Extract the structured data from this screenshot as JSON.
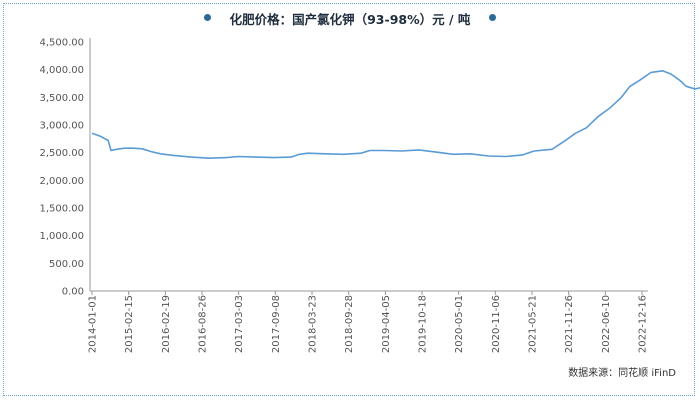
{
  "chart_data": {
    "type": "line",
    "title": "化肥价格：国产氯化钾（93-98%）元 / 吨",
    "xlabel": "",
    "ylabel": "",
    "ylim": [
      0,
      4500
    ],
    "y_ticks": [
      "4,500.00",
      "4,000.00",
      "3,500.00",
      "3,000.00",
      "2,500.00",
      "2,000.00",
      "1,500.00",
      "1,000.00",
      "500.00",
      "0.00"
    ],
    "x_ticks": [
      "2014-01-01",
      "2015-02-15",
      "2016-02-19",
      "2016-08-26",
      "2017-03-03",
      "2017-09-08",
      "2018-03-23",
      "2018-09-28",
      "2019-04-05",
      "2019-10-18",
      "2020-05-01",
      "2020-11-06",
      "2021-05-21",
      "2021-11-26",
      "2022-06-10",
      "2022-12-16"
    ],
    "grid": false,
    "series": [
      {
        "color": "#5b9bd5",
        "points": [
          [
            "2014-01-01",
            2850
          ],
          [
            "2014-04-01",
            2800
          ],
          [
            "2014-07-01",
            2720
          ],
          [
            "2014-08-01",
            2540
          ],
          [
            "2014-10-01",
            2560
          ],
          [
            "2015-01-01",
            2580
          ],
          [
            "2015-04-01",
            2580
          ],
          [
            "2015-07-01",
            2570
          ],
          [
            "2015-10-01",
            2520
          ],
          [
            "2016-01-01",
            2480
          ],
          [
            "2016-04-01",
            2450
          ],
          [
            "2016-07-01",
            2420
          ],
          [
            "2016-10-01",
            2400
          ],
          [
            "2017-01-01",
            2410
          ],
          [
            "2017-03-01",
            2430
          ],
          [
            "2017-06-01",
            2420
          ],
          [
            "2017-09-01",
            2410
          ],
          [
            "2017-12-01",
            2420
          ],
          [
            "2018-01-15",
            2470
          ],
          [
            "2018-03-01",
            2490
          ],
          [
            "2018-06-01",
            2480
          ],
          [
            "2018-09-01",
            2470
          ],
          [
            "2018-12-01",
            2490
          ],
          [
            "2019-01-15",
            2540
          ],
          [
            "2019-04-01",
            2540
          ],
          [
            "2019-07-01",
            2530
          ],
          [
            "2019-10-01",
            2550
          ],
          [
            "2020-01-01",
            2510
          ],
          [
            "2020-04-01",
            2470
          ],
          [
            "2020-07-01",
            2480
          ],
          [
            "2020-10-01",
            2440
          ],
          [
            "2021-01-01",
            2430
          ],
          [
            "2021-04-01",
            2460
          ],
          [
            "2021-06-01",
            2530
          ],
          [
            "2021-09-01",
            2560
          ],
          [
            "2021-11-01",
            2700
          ],
          [
            "2022-01-01",
            2850
          ],
          [
            "2022-03-01",
            2950
          ],
          [
            "2022-05-01",
            3150
          ],
          [
            "2022-07-01",
            3300
          ],
          [
            "2022-09-01",
            3500
          ],
          [
            "2022-10-15",
            3700
          ],
          [
            "2022-12-01",
            3800
          ],
          [
            "2023-02-01",
            3950
          ],
          [
            "2023-04-01",
            3980
          ],
          [
            "2023-05-15",
            3920
          ],
          [
            "2023-07-01",
            3800
          ],
          [
            "2023-08-01",
            3700
          ],
          [
            "2023-09-15",
            3650
          ],
          [
            "2023-11-01",
            3690
          ],
          [
            "2023-12-15",
            3700
          ]
        ]
      }
    ]
  },
  "source": "数据来源：同花顺 iFinD",
  "colors": {
    "line": "#5b9bd5",
    "frame": "#6aa3c9",
    "title_dot": "#2b6a96",
    "axis": "#999999"
  }
}
